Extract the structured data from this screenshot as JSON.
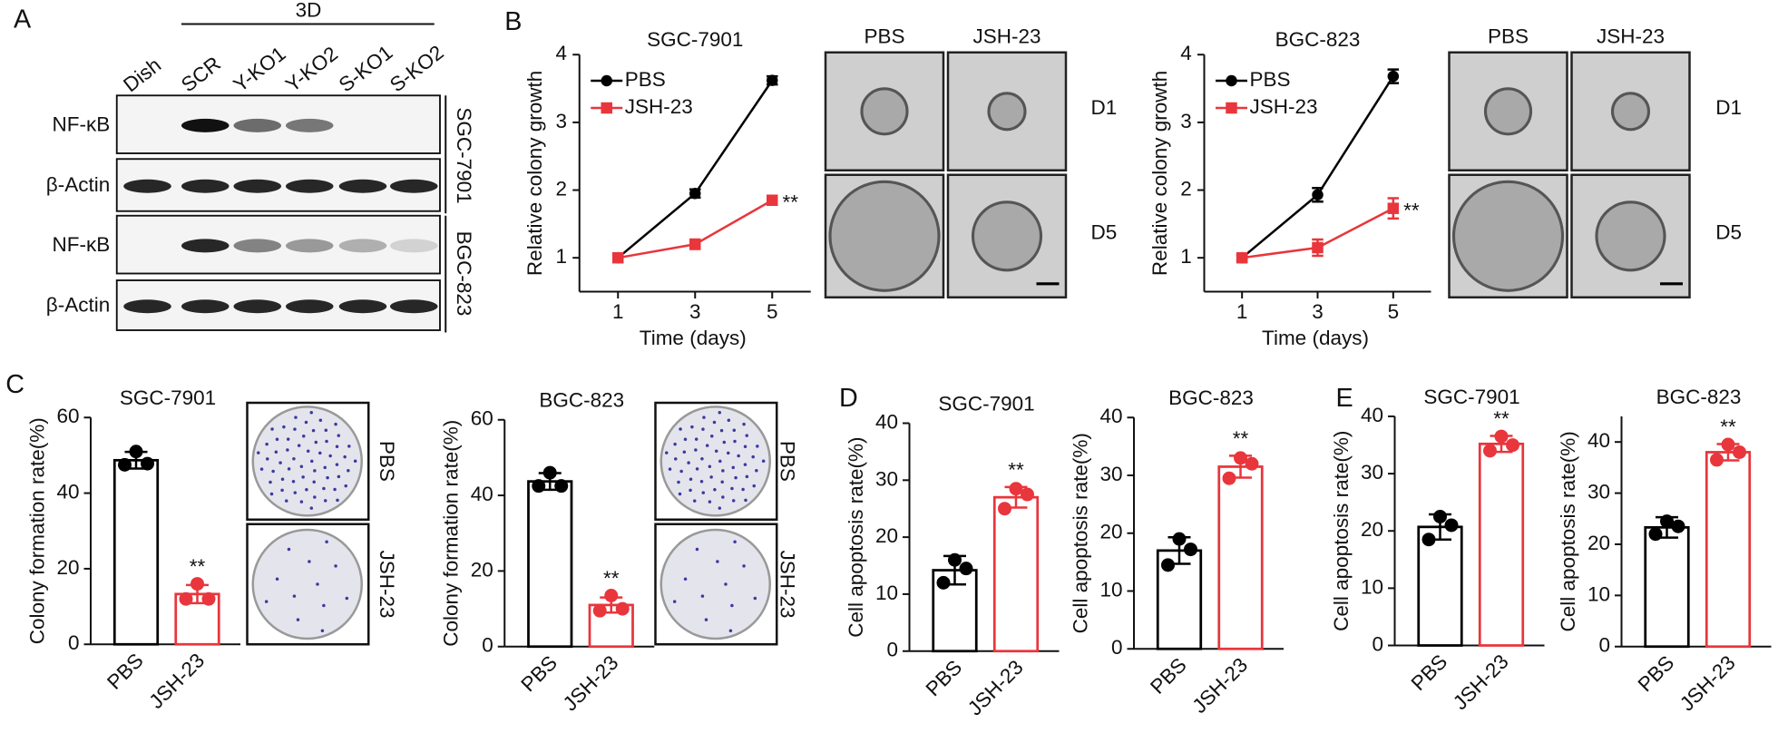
{
  "panel_labels": [
    "A",
    "B",
    "C",
    "D",
    "E"
  ],
  "blot": {
    "group": "3D",
    "lanes": [
      "Dish",
      "SCR",
      "Y-KO1",
      "Y-KO2",
      "S-KO1",
      "S-KO2"
    ],
    "rows": [
      "NF-κB",
      "β-Actin",
      "NF-κB",
      "β-Actin"
    ],
    "cell_lines": [
      "SGC-7901",
      "BGC-823"
    ]
  },
  "micrographs": [
    {
      "columns": [
        "PBS",
        "JSH-23"
      ],
      "rows": [
        "D1",
        "D5"
      ]
    },
    {
      "columns": [
        "PBS",
        "JSH-23"
      ],
      "rows": [
        "D1",
        "D5"
      ]
    }
  ],
  "plates": [
    {
      "rows": [
        "PBS",
        "JSH-23"
      ]
    },
    {
      "rows": [
        "PBS",
        "JSH-23"
      ]
    }
  ],
  "chart_data": [
    {
      "type": "line",
      "title": "SGC-7901",
      "xlabel": "Time (days)",
      "ylabel": "Relative colony growth",
      "x": [
        1,
        3,
        5
      ],
      "xlim": [
        0,
        6
      ],
      "xticks": [
        1,
        3,
        5
      ],
      "ylim": [
        0.5,
        4
      ],
      "yticks": [
        1,
        2,
        3,
        4
      ],
      "series": [
        {
          "name": "PBS",
          "color": "#000000",
          "values": [
            1,
            1.95,
            3.62
          ],
          "errors": [
            0.05,
            0.06,
            0.06
          ]
        },
        {
          "name": "JSH-23",
          "color": "#e8363c",
          "values": [
            1,
            1.2,
            1.85
          ],
          "errors": [
            0.05,
            0.07,
            0.06
          ],
          "annotation": "**"
        }
      ]
    },
    {
      "type": "line",
      "title": "BGC-823",
      "xlabel": "Time (days)",
      "ylabel": "Relative colony growth",
      "x": [
        1,
        3,
        5
      ],
      "xlim": [
        0,
        6
      ],
      "xticks": [
        1,
        3,
        5
      ],
      "ylim": [
        0.5,
        4
      ],
      "yticks": [
        1,
        2,
        3,
        4
      ],
      "series": [
        {
          "name": "PBS",
          "color": "#000000",
          "values": [
            1,
            1.93,
            3.68
          ],
          "errors": [
            0.04,
            0.1,
            0.1
          ]
        },
        {
          "name": "JSH-23",
          "color": "#e8363c",
          "values": [
            1,
            1.15,
            1.73
          ],
          "errors": [
            0.04,
            0.12,
            0.15
          ],
          "annotation": "**"
        }
      ]
    },
    {
      "type": "bar",
      "title": "SGC-7901",
      "ylabel": "Colony formation rate(%)",
      "categories": [
        "PBS",
        "JSH-23"
      ],
      "colors": [
        "#000000",
        "#e8363c"
      ],
      "values": [
        48.7,
        13.3
      ],
      "errors": [
        2.2,
        2.4
      ],
      "points": [
        [
          51,
          47.5,
          47.8
        ],
        [
          16,
          12,
          12
        ]
      ],
      "annotation": "**",
      "ylim": [
        0,
        60
      ],
      "yticks": [
        0,
        20,
        40,
        60
      ]
    },
    {
      "type": "bar",
      "title": "BGC-823",
      "ylabel": "Colony formation rate(%)",
      "categories": [
        "PBS",
        "JSH-23"
      ],
      "colors": [
        "#000000",
        "#e8363c"
      ],
      "values": [
        43.7,
        11
      ],
      "errors": [
        2.2,
        2
      ],
      "points": [
        [
          46,
          42.5,
          42.5
        ],
        [
          13.5,
          9.5,
          10
        ]
      ],
      "annotation": "**",
      "ylim": [
        0,
        60
      ],
      "yticks": [
        0,
        20,
        40,
        60
      ]
    },
    {
      "type": "bar",
      "title": "SGC-7901",
      "ylabel": "Cell apoptosis rate(%)",
      "categories": [
        "PBS",
        "JSH-23"
      ],
      "colors": [
        "#000000",
        "#e8363c"
      ],
      "values": [
        14.2,
        27
      ],
      "errors": [
        2.5,
        1.8
      ],
      "points": [
        [
          16,
          12,
          14.5
        ],
        [
          28.5,
          25,
          27.5
        ]
      ],
      "annotation": "**",
      "ylim": [
        0,
        40
      ],
      "yticks": [
        0,
        10,
        20,
        30,
        40
      ]
    },
    {
      "type": "bar",
      "title": "BGC-823",
      "ylabel": "Cell apoptosis rate(%)",
      "categories": [
        "PBS",
        "JSH-23"
      ],
      "colors": [
        "#000000",
        "#e8363c"
      ],
      "values": [
        17,
        31.5
      ],
      "errors": [
        2.3,
        1.9
      ],
      "points": [
        [
          19,
          14.5,
          17.2
        ],
        [
          33,
          29.5,
          32
        ]
      ],
      "annotation": "**",
      "ylim": [
        0,
        40
      ],
      "yticks": [
        0,
        10,
        20,
        30,
        40
      ]
    },
    {
      "type": "bar",
      "title": "SGC-7901",
      "ylabel": "Cell apoptosis rate(%)",
      "categories": [
        "PBS",
        "JSH-23"
      ],
      "colors": [
        "#000000",
        "#e8363c"
      ],
      "values": [
        20.7,
        35.2
      ],
      "errors": [
        2.2,
        1.4
      ],
      "points": [
        [
          22.5,
          18.5,
          21
        ],
        [
          36.5,
          34,
          35
        ]
      ],
      "annotation": "**",
      "ylim": [
        0,
        40
      ],
      "yticks": [
        0,
        10,
        20,
        30,
        40
      ]
    },
    {
      "type": "bar",
      "title": "BGC-823",
      "ylabel": "Cell apoptosis rate(%)",
      "categories": [
        "PBS",
        "JSH-23"
      ],
      "colors": [
        "#000000",
        "#e8363c"
      ],
      "values": [
        23.3,
        38
      ],
      "errors": [
        2,
        1.6
      ],
      "points": [
        [
          24.5,
          22,
          23.5
        ],
        [
          39.5,
          36.5,
          38
        ]
      ],
      "annotation": "**",
      "ylim": [
        0,
        45
      ],
      "yticks": [
        0,
        10,
        20,
        30,
        40
      ]
    }
  ]
}
